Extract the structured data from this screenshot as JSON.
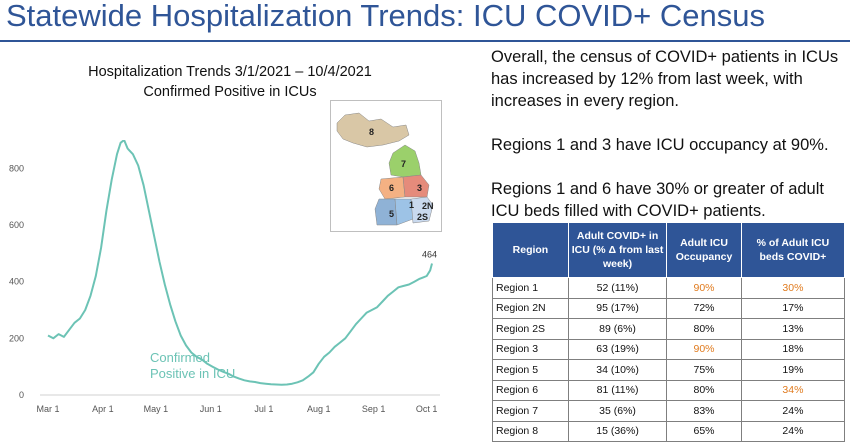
{
  "page": {
    "title": "Statewide Hospitalization Trends: ICU COVID+ Census"
  },
  "chart_data": {
    "type": "line",
    "title": "Hospitalization Trends 3/1/2021 – 10/4/2021",
    "subtitle": "Confirmed Positive in ICUs",
    "series_label_line1": "Confirmed",
    "series_label_line2": "Positive in ICU",
    "end_label": "464",
    "y_ticks": [
      "0",
      "200",
      "400",
      "600",
      "800"
    ],
    "y_tick_values": [
      0,
      200,
      400,
      600,
      800
    ],
    "x_ticks": [
      "Mar 1",
      "Apr 1",
      "May 1",
      "Jun 1",
      "Jul 1",
      "Aug 1",
      "Sep 1",
      "Oct 1"
    ],
    "x_tick_days": [
      0,
      31,
      61,
      92,
      122,
      153,
      184,
      214
    ],
    "ylim": [
      0,
      900
    ],
    "xlim_days": [
      0,
      217
    ],
    "line_color": "#6cc3b5",
    "points": [
      [
        0,
        210
      ],
      [
        3,
        200
      ],
      [
        6,
        215
      ],
      [
        9,
        205
      ],
      [
        12,
        230
      ],
      [
        15,
        255
      ],
      [
        18,
        270
      ],
      [
        21,
        300
      ],
      [
        24,
        350
      ],
      [
        27,
        420
      ],
      [
        30,
        520
      ],
      [
        33,
        650
      ],
      [
        36,
        760
      ],
      [
        39,
        850
      ],
      [
        41,
        890
      ],
      [
        43,
        900
      ],
      [
        45,
        870
      ],
      [
        48,
        850
      ],
      [
        51,
        810
      ],
      [
        54,
        740
      ],
      [
        57,
        650
      ],
      [
        60,
        560
      ],
      [
        63,
        470
      ],
      [
        66,
        390
      ],
      [
        69,
        320
      ],
      [
        72,
        260
      ],
      [
        75,
        210
      ],
      [
        78,
        175
      ],
      [
        81,
        150
      ],
      [
        84,
        135
      ],
      [
        87,
        125
      ],
      [
        90,
        110
      ],
      [
        93,
        100
      ],
      [
        96,
        90
      ],
      [
        99,
        82
      ],
      [
        102,
        75
      ],
      [
        105,
        65
      ],
      [
        108,
        58
      ],
      [
        111,
        52
      ],
      [
        114,
        48
      ],
      [
        117,
        46
      ],
      [
        120,
        42
      ],
      [
        123,
        40
      ],
      [
        126,
        38
      ],
      [
        129,
        37
      ],
      [
        132,
        36
      ],
      [
        135,
        37
      ],
      [
        138,
        40
      ],
      [
        141,
        45
      ],
      [
        144,
        52
      ],
      [
        147,
        65
      ],
      [
        150,
        80
      ],
      [
        153,
        110
      ],
      [
        156,
        135
      ],
      [
        159,
        150
      ],
      [
        162,
        170
      ],
      [
        165,
        185
      ],
      [
        168,
        200
      ],
      [
        171,
        225
      ],
      [
        174,
        250
      ],
      [
        177,
        270
      ],
      [
        180,
        290
      ],
      [
        183,
        300
      ],
      [
        186,
        310
      ],
      [
        189,
        330
      ],
      [
        192,
        350
      ],
      [
        195,
        365
      ],
      [
        198,
        380
      ],
      [
        201,
        385
      ],
      [
        204,
        390
      ],
      [
        207,
        400
      ],
      [
        210,
        410
      ],
      [
        212,
        415
      ],
      [
        214,
        420
      ],
      [
        216,
        440
      ],
      [
        217,
        464
      ]
    ]
  },
  "map": {
    "colors": {
      "region8": "#d9c7a6",
      "region7": "#9bd06b",
      "region6": "#f4b183",
      "region3": "#e58b7b",
      "region1": "#9dc3e6",
      "region5": "#8fb2d6",
      "region2": "#c9d9ee"
    },
    "labels": {
      "r8": "8",
      "r7": "7",
      "r6": "6",
      "r3": "3",
      "r1": "1",
      "r2n": "2N",
      "r2s": "2S",
      "r5": "5"
    }
  },
  "text": {
    "p1": "Overall, the census of COVID+ patients in ICUs has increased by 12% from last week, with increases in every region.",
    "p2": "Regions 1 and 3 have ICU occupancy at 90%.",
    "p3": "Regions 1 and 6 have 30% or greater of adult ICU beds filled with COVID+ patients."
  },
  "table": {
    "headers": [
      "Region",
      "Adult COVID+ in ICU (% Δ from last week)",
      "Adult ICU Occupancy",
      "% of Adult ICU beds COVID+"
    ],
    "rows": [
      [
        "Region 1",
        "52 (11%)",
        "90%",
        "30%"
      ],
      [
        "Region 2N",
        "95 (17%)",
        "72%",
        "17%"
      ],
      [
        "Region 2S",
        "89 (6%)",
        "80%",
        "13%"
      ],
      [
        "Region 3",
        "63 (19%)",
        "90%",
        "18%"
      ],
      [
        "Region 5",
        "34 (10%)",
        "75%",
        "19%"
      ],
      [
        "Region 6",
        "81 (11%)",
        "80%",
        "34%"
      ],
      [
        "Region 7",
        "35 (6%)",
        "83%",
        "24%"
      ],
      [
        "Region 8",
        "15 (36%)",
        "65%",
        "24%"
      ]
    ],
    "highlight_color": "#e07b1f"
  }
}
